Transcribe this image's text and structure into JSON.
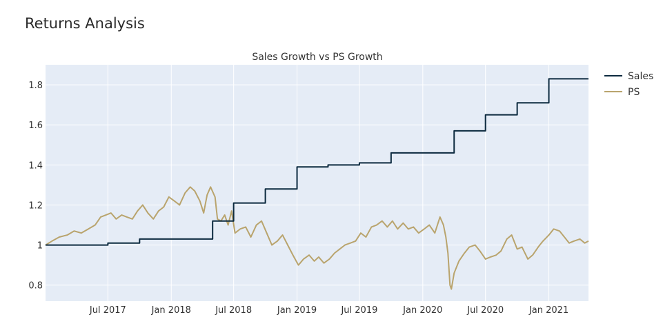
{
  "page": {
    "title": "Returns Analysis"
  },
  "colors": {
    "sales": "#0c2a3f",
    "ps": "#b9a46d",
    "plot_bg": "#e5ecf6",
    "grid": "#ffffff"
  },
  "chart_data": {
    "type": "line",
    "title": "Sales Growth vs PS Growth",
    "xlabel": "",
    "ylabel": "",
    "ylim": [
      0.72,
      1.9
    ],
    "xlim": [
      "2017-01-01",
      "2021-04-26"
    ],
    "grid": true,
    "legend_position": "top-right",
    "x_ticks": [
      {
        "date": "2017-07-01",
        "label": "Jul 2017"
      },
      {
        "date": "2018-01-01",
        "label": "Jan 2018"
      },
      {
        "date": "2018-07-01",
        "label": "Jul 2018"
      },
      {
        "date": "2019-01-01",
        "label": "Jan 2019"
      },
      {
        "date": "2019-07-01",
        "label": "Jul 2019"
      },
      {
        "date": "2020-01-01",
        "label": "Jan 2020"
      },
      {
        "date": "2020-07-01",
        "label": "Jul 2020"
      },
      {
        "date": "2021-01-01",
        "label": "Jan 2021"
      }
    ],
    "y_ticks": [
      {
        "value": 0.8,
        "label": "0.8"
      },
      {
        "value": 1.0,
        "label": "1"
      },
      {
        "value": 1.2,
        "label": "1.2"
      },
      {
        "value": 1.4,
        "label": "1.4"
      },
      {
        "value": 1.6,
        "label": "1.6"
      },
      {
        "value": 1.8,
        "label": "1.8"
      }
    ],
    "series": [
      {
        "name": "Sales",
        "shape": "step",
        "points": [
          [
            "2017-01-01",
            1.0
          ],
          [
            "2017-07-01",
            1.01
          ],
          [
            "2017-10-01",
            1.03
          ],
          [
            "2018-05-01",
            1.12
          ],
          [
            "2018-07-01",
            1.21
          ],
          [
            "2018-10-01",
            1.28
          ],
          [
            "2019-01-01",
            1.39
          ],
          [
            "2019-04-01",
            1.4
          ],
          [
            "2019-07-01",
            1.41
          ],
          [
            "2019-10-01",
            1.46
          ],
          [
            "2020-04-01",
            1.57
          ],
          [
            "2020-07-01",
            1.65
          ],
          [
            "2020-10-01",
            1.71
          ],
          [
            "2021-01-01",
            1.83
          ],
          [
            "2021-04-26",
            1.83
          ]
        ]
      },
      {
        "name": "PS",
        "shape": "line",
        "points": [
          [
            "2017-01-01",
            1.0
          ],
          [
            "2017-01-20",
            1.02
          ],
          [
            "2017-02-10",
            1.04
          ],
          [
            "2017-03-05",
            1.05
          ],
          [
            "2017-03-25",
            1.07
          ],
          [
            "2017-04-15",
            1.06
          ],
          [
            "2017-05-05",
            1.08
          ],
          [
            "2017-05-25",
            1.1
          ],
          [
            "2017-06-10",
            1.14
          ],
          [
            "2017-06-25",
            1.15
          ],
          [
            "2017-07-10",
            1.16
          ],
          [
            "2017-07-25",
            1.13
          ],
          [
            "2017-08-10",
            1.15
          ],
          [
            "2017-08-25",
            1.14
          ],
          [
            "2017-09-10",
            1.13
          ],
          [
            "2017-09-25",
            1.17
          ],
          [
            "2017-10-10",
            1.2
          ],
          [
            "2017-10-25",
            1.16
          ],
          [
            "2017-11-10",
            1.13
          ],
          [
            "2017-11-25",
            1.17
          ],
          [
            "2017-12-10",
            1.19
          ],
          [
            "2017-12-25",
            1.24
          ],
          [
            "2018-01-10",
            1.22
          ],
          [
            "2018-01-25",
            1.2
          ],
          [
            "2018-02-10",
            1.26
          ],
          [
            "2018-02-25",
            1.29
          ],
          [
            "2018-03-10",
            1.27
          ],
          [
            "2018-03-25",
            1.22
          ],
          [
            "2018-04-05",
            1.16
          ],
          [
            "2018-04-15",
            1.25
          ],
          [
            "2018-04-25",
            1.29
          ],
          [
            "2018-05-08",
            1.24
          ],
          [
            "2018-05-15",
            1.13
          ],
          [
            "2018-05-25",
            1.12
          ],
          [
            "2018-06-05",
            1.15
          ],
          [
            "2018-06-15",
            1.1
          ],
          [
            "2018-06-25",
            1.17
          ],
          [
            "2018-07-05",
            1.06
          ],
          [
            "2018-07-20",
            1.08
          ],
          [
            "2018-08-05",
            1.09
          ],
          [
            "2018-08-20",
            1.04
          ],
          [
            "2018-09-05",
            1.1
          ],
          [
            "2018-09-20",
            1.12
          ],
          [
            "2018-10-05",
            1.06
          ],
          [
            "2018-10-20",
            1.0
          ],
          [
            "2018-11-05",
            1.02
          ],
          [
            "2018-11-20",
            1.05
          ],
          [
            "2018-12-05",
            1.0
          ],
          [
            "2018-12-20",
            0.95
          ],
          [
            "2019-01-05",
            0.9
          ],
          [
            "2019-01-20",
            0.93
          ],
          [
            "2019-02-05",
            0.95
          ],
          [
            "2019-02-20",
            0.92
          ],
          [
            "2019-03-05",
            0.94
          ],
          [
            "2019-03-20",
            0.91
          ],
          [
            "2019-04-05",
            0.93
          ],
          [
            "2019-04-20",
            0.96
          ],
          [
            "2019-05-05",
            0.98
          ],
          [
            "2019-05-20",
            1.0
          ],
          [
            "2019-06-05",
            1.01
          ],
          [
            "2019-06-20",
            1.02
          ],
          [
            "2019-07-05",
            1.06
          ],
          [
            "2019-07-20",
            1.04
          ],
          [
            "2019-08-05",
            1.09
          ],
          [
            "2019-08-20",
            1.1
          ],
          [
            "2019-09-05",
            1.12
          ],
          [
            "2019-09-20",
            1.09
          ],
          [
            "2019-10-05",
            1.12
          ],
          [
            "2019-10-20",
            1.08
          ],
          [
            "2019-11-05",
            1.11
          ],
          [
            "2019-11-20",
            1.08
          ],
          [
            "2019-12-05",
            1.09
          ],
          [
            "2019-12-20",
            1.06
          ],
          [
            "2020-01-05",
            1.08
          ],
          [
            "2020-01-20",
            1.1
          ],
          [
            "2020-02-05",
            1.06
          ],
          [
            "2020-02-20",
            1.14
          ],
          [
            "2020-03-01",
            1.1
          ],
          [
            "2020-03-08",
            1.04
          ],
          [
            "2020-03-14",
            0.96
          ],
          [
            "2020-03-20",
            0.8
          ],
          [
            "2020-03-24",
            0.78
          ],
          [
            "2020-04-01",
            0.86
          ],
          [
            "2020-04-15",
            0.92
          ],
          [
            "2020-05-01",
            0.96
          ],
          [
            "2020-05-15",
            0.99
          ],
          [
            "2020-06-01",
            1.0
          ],
          [
            "2020-06-15",
            0.97
          ],
          [
            "2020-07-01",
            0.93
          ],
          [
            "2020-07-15",
            0.94
          ],
          [
            "2020-08-01",
            0.95
          ],
          [
            "2020-08-15",
            0.97
          ],
          [
            "2020-09-01",
            1.03
          ],
          [
            "2020-09-15",
            1.05
          ],
          [
            "2020-10-01",
            0.98
          ],
          [
            "2020-10-15",
            0.99
          ],
          [
            "2020-11-01",
            0.93
          ],
          [
            "2020-11-15",
            0.95
          ],
          [
            "2020-12-01",
            0.99
          ],
          [
            "2020-12-15",
            1.02
          ],
          [
            "2021-01-01",
            1.05
          ],
          [
            "2021-01-15",
            1.08
          ],
          [
            "2021-02-01",
            1.07
          ],
          [
            "2021-02-15",
            1.04
          ],
          [
            "2021-03-01",
            1.01
          ],
          [
            "2021-03-15",
            1.02
          ],
          [
            "2021-04-01",
            1.03
          ],
          [
            "2021-04-15",
            1.01
          ],
          [
            "2021-04-26",
            1.02
          ]
        ]
      }
    ]
  }
}
